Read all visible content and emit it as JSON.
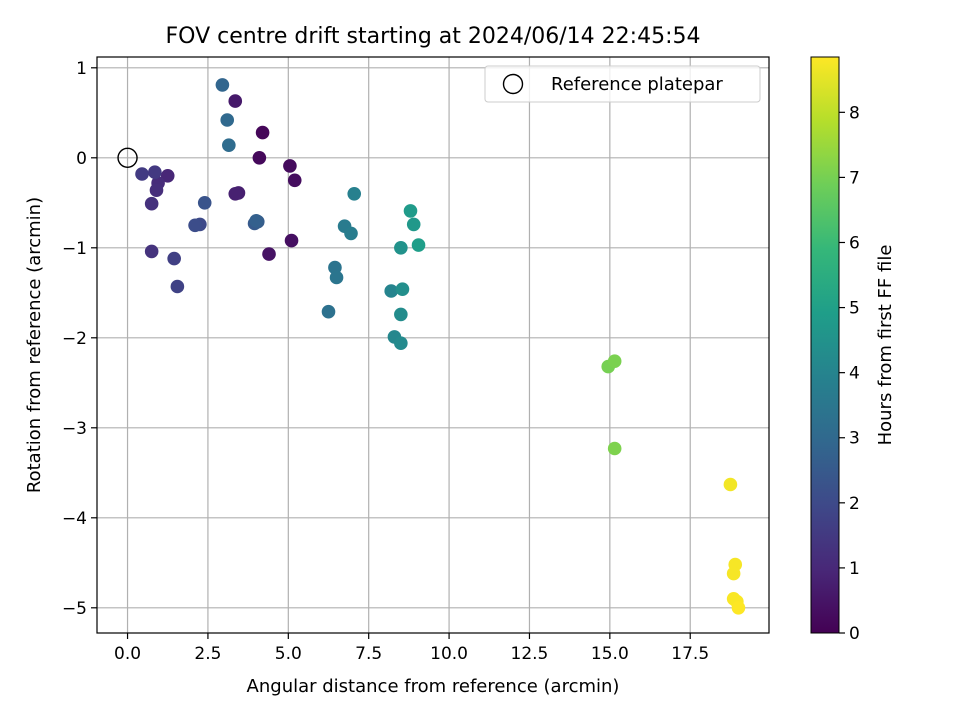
{
  "chart_data": {
    "type": "scatter",
    "title": "FOV centre drift starting at 2024/06/14 22:45:54",
    "xlabel": "Angular distance from reference (arcmin)",
    "ylabel": "Rotation from reference (arcmin)",
    "xlim": [
      -0.95,
      19.95
    ],
    "ylim": [
      -5.28,
      1.12
    ],
    "x_ticks": [
      "0.0",
      "2.5",
      "5.0",
      "7.5",
      "10.0",
      "12.5",
      "15.0",
      "17.5"
    ],
    "x_tick_values": [
      0,
      2.5,
      5,
      7.5,
      10,
      12.5,
      15,
      17.5
    ],
    "y_ticks": [
      "1",
      "0",
      "−1",
      "−2",
      "−3",
      "−4",
      "−5"
    ],
    "y_tick_values": [
      1,
      0,
      -1,
      -2,
      -3,
      -4,
      -5
    ],
    "grid": true,
    "legend": {
      "placement": "top-right",
      "entries": [
        "Reference platepar"
      ]
    },
    "reference_point": {
      "x": 0,
      "y": 0
    },
    "colorbar": {
      "label": "Hours from first FF file",
      "range": [
        0,
        8.85
      ],
      "ticks": [
        "0",
        "1",
        "2",
        "3",
        "4",
        "5",
        "6",
        "7",
        "8"
      ],
      "tick_values": [
        0,
        1,
        2,
        3,
        4,
        5,
        6,
        7,
        8
      ],
      "colormap": [
        "#440154",
        "#482878",
        "#3e4989",
        "#31688e",
        "#26828e",
        "#1f9e89",
        "#35b779",
        "#6ece58",
        "#b5de2b",
        "#fde725"
      ]
    },
    "points": [
      {
        "x": 4.2,
        "y": 0.28,
        "h": 0.15
      },
      {
        "x": 4.1,
        "y": 0.0,
        "h": 0.2
      },
      {
        "x": 5.05,
        "y": -0.09,
        "h": 0.25
      },
      {
        "x": 5.2,
        "y": -0.25,
        "h": 0.3
      },
      {
        "x": 5.1,
        "y": -0.92,
        "h": 0.35
      },
      {
        "x": 4.4,
        "y": -1.07,
        "h": 0.45
      },
      {
        "x": 3.35,
        "y": 0.63,
        "h": 0.6
      },
      {
        "x": 3.45,
        "y": -0.39,
        "h": 0.75
      },
      {
        "x": 3.35,
        "y": -0.4,
        "h": 0.8
      },
      {
        "x": 1.25,
        "y": -0.2,
        "h": 0.95
      },
      {
        "x": 0.95,
        "y": -0.28,
        "h": 1.1
      },
      {
        "x": 0.9,
        "y": -0.36,
        "h": 1.15
      },
      {
        "x": 0.75,
        "y": -0.51,
        "h": 1.25
      },
      {
        "x": 0.75,
        "y": -1.04,
        "h": 1.3
      },
      {
        "x": 0.85,
        "y": -0.16,
        "h": 1.5
      },
      {
        "x": 0.45,
        "y": -0.18,
        "h": 1.55
      },
      {
        "x": 1.45,
        "y": -1.12,
        "h": 1.7
      },
      {
        "x": 1.55,
        "y": -1.43,
        "h": 1.75
      },
      {
        "x": 2.25,
        "y": -0.74,
        "h": 2.0
      },
      {
        "x": 2.1,
        "y": -0.75,
        "h": 2.1
      },
      {
        "x": 2.4,
        "y": -0.5,
        "h": 2.3
      },
      {
        "x": 3.95,
        "y": -0.73,
        "h": 2.5
      },
      {
        "x": 4.05,
        "y": -0.71,
        "h": 2.6
      },
      {
        "x": 4.0,
        "y": -0.7,
        "h": 2.7
      },
      {
        "x": 2.95,
        "y": 0.81,
        "h": 2.9
      },
      {
        "x": 3.1,
        "y": 0.42,
        "h": 3.0
      },
      {
        "x": 3.15,
        "y": 0.14,
        "h": 3.1
      },
      {
        "x": 6.25,
        "y": -1.71,
        "h": 3.3
      },
      {
        "x": 6.45,
        "y": -1.22,
        "h": 3.4
      },
      {
        "x": 6.5,
        "y": -1.33,
        "h": 3.45
      },
      {
        "x": 6.75,
        "y": -0.76,
        "h": 3.65
      },
      {
        "x": 6.95,
        "y": -0.84,
        "h": 3.75
      },
      {
        "x": 7.05,
        "y": -0.4,
        "h": 3.85
      },
      {
        "x": 8.2,
        "y": -1.48,
        "h": 4.0
      },
      {
        "x": 8.3,
        "y": -1.99,
        "h": 4.1
      },
      {
        "x": 8.5,
        "y": -2.06,
        "h": 4.2
      },
      {
        "x": 8.5,
        "y": -1.74,
        "h": 4.3
      },
      {
        "x": 8.55,
        "y": -1.46,
        "h": 4.4
      },
      {
        "x": 8.5,
        "y": -1.0,
        "h": 4.5
      },
      {
        "x": 8.9,
        "y": -0.74,
        "h": 4.7
      },
      {
        "x": 8.8,
        "y": -0.59,
        "h": 4.8
      },
      {
        "x": 9.05,
        "y": -0.97,
        "h": 4.9
      },
      {
        "x": 14.95,
        "y": -2.32,
        "h": 7.0
      },
      {
        "x": 15.15,
        "y": -2.26,
        "h": 7.05
      },
      {
        "x": 15.15,
        "y": -3.23,
        "h": 7.1
      },
      {
        "x": 18.75,
        "y": -3.63,
        "h": 8.7
      },
      {
        "x": 18.9,
        "y": -4.52,
        "h": 8.75
      },
      {
        "x": 18.85,
        "y": -4.62,
        "h": 8.75
      },
      {
        "x": 18.85,
        "y": -4.9,
        "h": 8.8
      },
      {
        "x": 18.95,
        "y": -4.93,
        "h": 8.8
      },
      {
        "x": 19.0,
        "y": -5.0,
        "h": 8.85
      }
    ]
  }
}
